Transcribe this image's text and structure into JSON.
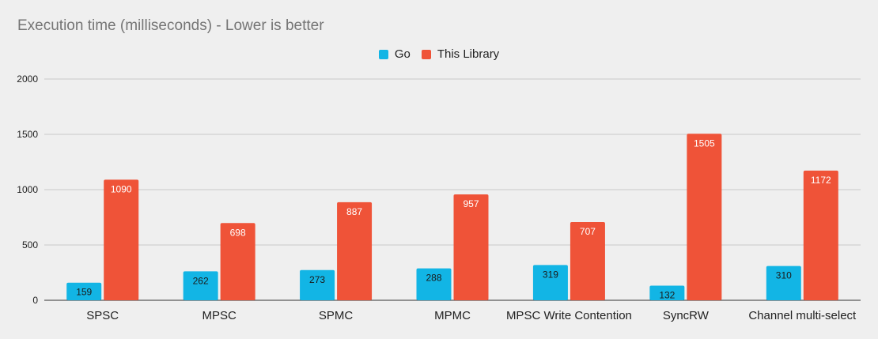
{
  "chart_data": {
    "type": "bar",
    "title": "Execution time (milliseconds) - Lower is better",
    "xlabel": "",
    "ylabel": "",
    "categories": [
      "SPSC",
      "MPSC",
      "SPMC",
      "MPMC",
      "MPSC Write Contention",
      "SyncRW",
      "Channel multi-select"
    ],
    "series": [
      {
        "name": "Go",
        "color": "#12b5e5",
        "label_color": "#1a1a1a",
        "values": [
          159,
          262,
          273,
          288,
          319,
          132,
          310
        ]
      },
      {
        "name": "This Library",
        "color": "#ef5338",
        "label_color": "#ffffff",
        "values": [
          1090,
          698,
          887,
          957,
          707,
          1505,
          1172
        ]
      }
    ],
    "ylim": [
      0,
      2000
    ],
    "yticks": [
      0,
      500,
      1000,
      1500,
      2000
    ],
    "grid": true,
    "legend_position": "top-center",
    "data_labels": true
  }
}
